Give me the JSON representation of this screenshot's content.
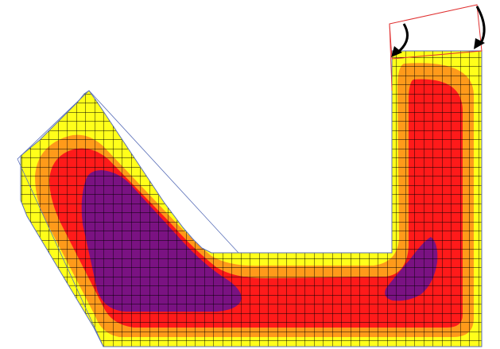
{
  "figure": {
    "kind": "contour-plot-on-mesh",
    "colors": {
      "background": "#ffffff",
      "level_1": "#ffff1a",
      "level_2": "#ff9a1a",
      "level_3": "#ff1a1a",
      "level_4": "#7a1282",
      "mesh_line": "#000000",
      "outline": "#5a6fb8",
      "lid_outline": "#e03030",
      "arrow": "#000000"
    },
    "icons": [
      "curved-arrow-icon",
      "curved-arrow-icon"
    ]
  }
}
